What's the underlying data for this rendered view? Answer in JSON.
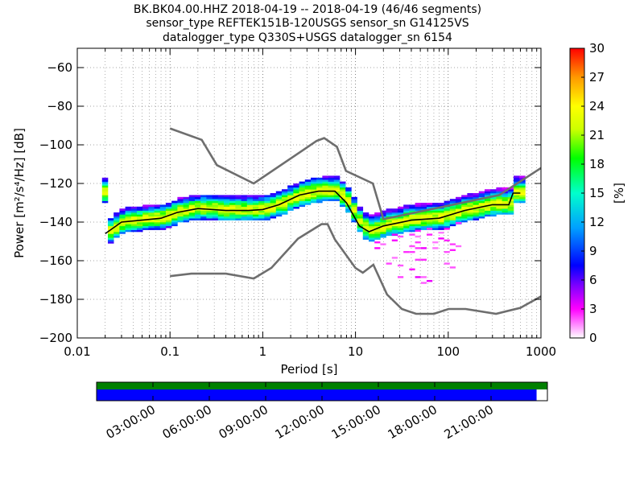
{
  "chart_data": {
    "type": "heatmap",
    "title_lines": [
      "BK.BK04.00.HHZ   2018-04-19 -- 2018-04-19  (46/46 segments)",
      "sensor_type REFTEK151B-120USGS sensor_sn G14125VS",
      "datalogger_type Q330S+USGS datalogger_sn 6154"
    ],
    "xlabel": "Period [s]",
    "ylabel": "Power [m²/s⁴/Hz] [dB]",
    "x_scale": "log",
    "xlim": [
      0.01,
      1000
    ],
    "ylim": [
      -200,
      -50
    ],
    "x_ticks": [
      {
        "value": 0.01,
        "label": "0.01"
      },
      {
        "value": 0.1,
        "label": "0.1"
      },
      {
        "value": 1,
        "label": "1"
      },
      {
        "value": 10,
        "label": "10"
      },
      {
        "value": 100,
        "label": "100"
      },
      {
        "value": 1000,
        "label": "1000"
      }
    ],
    "y_ticks": [
      {
        "value": -60,
        "label": "−60"
      },
      {
        "value": -80,
        "label": "−80"
      },
      {
        "value": -100,
        "label": "−100"
      },
      {
        "value": -120,
        "label": "−120"
      },
      {
        "value": -140,
        "label": "−140"
      },
      {
        "value": -160,
        "label": "−160"
      },
      {
        "value": -180,
        "label": "−180"
      },
      {
        "value": -200,
        "label": "−200"
      }
    ],
    "grid": true,
    "colorbar": {
      "label": "[%]",
      "min": 0,
      "max": 30,
      "ticks": [
        {
          "value": 0,
          "label": "0"
        },
        {
          "value": 3,
          "label": "3"
        },
        {
          "value": 6,
          "label": "6"
        },
        {
          "value": 9,
          "label": "9"
        },
        {
          "value": 12,
          "label": "12"
        },
        {
          "value": 15,
          "label": "15"
        },
        {
          "value": 18,
          "label": "18"
        },
        {
          "value": 21,
          "label": "21"
        },
        {
          "value": 24,
          "label": "24"
        },
        {
          "value": 27,
          "label": "27"
        },
        {
          "value": 30,
          "label": "30"
        }
      ],
      "colors": [
        "#ffffff",
        "#ff00ff",
        "#7f00ff",
        "#0000ff",
        "#00a0ff",
        "#00ffcc",
        "#00ff00",
        "#ccff00",
        "#ffff00",
        "#ff9900",
        "#ff0000"
      ]
    },
    "reference_curves": {
      "nhnm": [
        [
          0.1,
          -91.5
        ],
        [
          0.22,
          -97.4
        ],
        [
          0.32,
          -110.5
        ],
        [
          0.8,
          -120
        ],
        [
          3.8,
          -98
        ],
        [
          4.6,
          -96.5
        ],
        [
          6.3,
          -101
        ],
        [
          7.9,
          -113.5
        ],
        [
          15.4,
          -120
        ],
        [
          20,
          -138.5
        ],
        [
          354.8,
          -126
        ],
        [
          1000,
          -112
        ]
      ],
      "nlnm": [
        [
          0.1,
          -168
        ],
        [
          0.17,
          -166.7
        ],
        [
          0.4,
          -166.7
        ],
        [
          0.8,
          -169.2
        ],
        [
          1.24,
          -163.7
        ],
        [
          2.4,
          -148.6
        ],
        [
          4.3,
          -141.1
        ],
        [
          5,
          -141.1
        ],
        [
          6,
          -149
        ],
        [
          10,
          -163.8
        ],
        [
          12,
          -166.2
        ],
        [
          15.6,
          -162.1
        ],
        [
          21.9,
          -177.5
        ],
        [
          31.6,
          -185
        ],
        [
          45,
          -187.5
        ],
        [
          70,
          -187.5
        ],
        [
          101,
          -185
        ],
        [
          154,
          -185
        ],
        [
          328,
          -187.5
        ],
        [
          600,
          -184.4
        ],
        [
          1000,
          -178.5
        ]
      ]
    },
    "mode_curve": [
      [
        0.02,
        -146
      ],
      [
        0.03,
        -140
      ],
      [
        0.05,
        -139
      ],
      [
        0.08,
        -138
      ],
      [
        0.12,
        -135
      ],
      [
        0.2,
        -133
      ],
      [
        0.4,
        -134
      ],
      [
        0.7,
        -134
      ],
      [
        1,
        -133.5
      ],
      [
        1.5,
        -131
      ],
      [
        2.5,
        -126
      ],
      [
        4,
        -124
      ],
      [
        6,
        -124
      ],
      [
        8,
        -130
      ],
      [
        11,
        -142
      ],
      [
        14,
        -145
      ],
      [
        20,
        -142
      ],
      [
        40,
        -139
      ],
      [
        80,
        -138
      ],
      [
        150,
        -134
      ],
      [
        300,
        -131
      ],
      [
        450,
        -131
      ],
      [
        500,
        -125
      ],
      [
        600,
        -125
      ]
    ],
    "mean_curve": [
      [
        0.02,
        -145
      ],
      [
        0.04,
        -140
      ],
      [
        0.08,
        -137
      ],
      [
        0.15,
        -134
      ],
      [
        0.3,
        -133
      ],
      [
        0.6,
        -134
      ],
      [
        1,
        -133
      ],
      [
        2,
        -128
      ],
      [
        3.5,
        -125
      ],
      [
        5.5,
        -124
      ],
      [
        7,
        -126
      ],
      [
        10,
        -138
      ],
      [
        14,
        -144
      ],
      [
        25,
        -139
      ],
      [
        60,
        -135
      ],
      [
        120,
        -133
      ],
      [
        250,
        -130
      ],
      [
        500,
        -127
      ]
    ],
    "availability": {
      "tick_labels": [
        "03:00:00",
        "06:00:00",
        "09:00:00",
        "12:00:00",
        "15:00:00",
        "18:00:00",
        "21:00:00"
      ],
      "tick_hours": [
        3,
        6,
        9,
        12,
        15,
        18,
        21
      ],
      "range_hours": [
        0,
        24
      ],
      "data_fraction": 1.0,
      "processed_fraction": 0.976,
      "data_color": "#008000",
      "processed_color": "#0000ff"
    }
  }
}
